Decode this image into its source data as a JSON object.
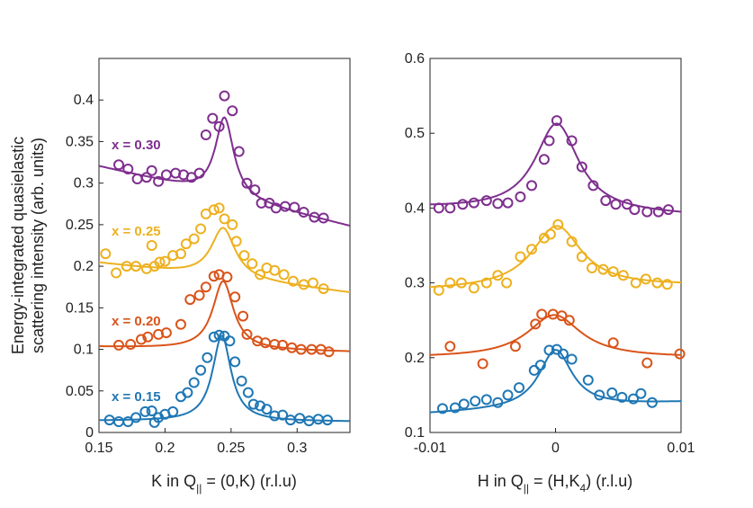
{
  "chart_data": [
    {
      "type": "scatter",
      "xlabel": "K in Q|| = (0,K) (r.l.u)",
      "xlabel_parts": {
        "prefix": "K in Q",
        "sub": "||",
        "suffix": " = (0,K) (r.l.u)"
      },
      "ylabel_line1": "Energy-integrated quasielastic",
      "ylabel_line2": "scattering intensity (arb. units)",
      "xlim": [
        0.15,
        0.34
      ],
      "ylim": [
        0,
        0.45
      ],
      "xticks": [
        0.15,
        0.2,
        0.25,
        0.3
      ],
      "xtick_labels": [
        "0.15",
        "0.2",
        "0.25",
        "0.3"
      ],
      "yticks": [
        0,
        0.05,
        0.1,
        0.15,
        0.2,
        0.25,
        0.3,
        0.35,
        0.4
      ],
      "ytick_labels": [
        "0",
        "0.05",
        "0.1",
        "0.15",
        "0.2",
        "0.25",
        "0.3",
        "0.35",
        "0.4"
      ],
      "series": [
        {
          "name": "x = 0.15",
          "color": "#1f77b4",
          "fit": {
            "center": 0.243,
            "hwhm": 0.0085,
            "amp": 0.103,
            "baseline_start": 0.014,
            "baseline_end": 0.013
          },
          "points": [
            [
              0.158,
              0.015
            ],
            [
              0.165,
              0.013
            ],
            [
              0.172,
              0.013
            ],
            [
              0.178,
              0.018
            ],
            [
              0.185,
              0.025
            ],
            [
              0.19,
              0.026
            ],
            [
              0.192,
              0.012
            ],
            [
              0.195,
              0.018
            ],
            [
              0.2,
              0.022
            ],
            [
              0.206,
              0.025
            ],
            [
              0.212,
              0.043
            ],
            [
              0.217,
              0.048
            ],
            [
              0.222,
              0.06
            ],
            [
              0.227,
              0.075
            ],
            [
              0.232,
              0.09
            ],
            [
              0.237,
              0.115
            ],
            [
              0.241,
              0.117
            ],
            [
              0.245,
              0.116
            ],
            [
              0.249,
              0.11
            ],
            [
              0.253,
              0.085
            ],
            [
              0.258,
              0.062
            ],
            [
              0.263,
              0.048
            ],
            [
              0.267,
              0.034
            ],
            [
              0.272,
              0.032
            ],
            [
              0.277,
              0.028
            ],
            [
              0.283,
              0.02
            ],
            [
              0.289,
              0.021
            ],
            [
              0.295,
              0.015
            ],
            [
              0.302,
              0.017
            ],
            [
              0.309,
              0.014
            ],
            [
              0.316,
              0.016
            ],
            [
              0.323,
              0.015
            ]
          ]
        },
        {
          "name": "x = 0.20",
          "color": "#d9541a",
          "fit": {
            "center": 0.244,
            "hwhm": 0.0095,
            "amp": 0.082,
            "baseline_start": 0.103,
            "baseline_end": 0.097
          },
          "points": [
            [
              0.165,
              0.105
            ],
            [
              0.174,
              0.106
            ],
            [
              0.182,
              0.112
            ],
            [
              0.187,
              0.115
            ],
            [
              0.195,
              0.118
            ],
            [
              0.201,
              0.12
            ],
            [
              0.212,
              0.13
            ],
            [
              0.219,
              0.16
            ],
            [
              0.226,
              0.165
            ],
            [
              0.231,
              0.175
            ],
            [
              0.237,
              0.188
            ],
            [
              0.241,
              0.19
            ],
            [
              0.247,
              0.187
            ],
            [
              0.253,
              0.163
            ],
            [
              0.259,
              0.14
            ],
            [
              0.262,
              0.118
            ],
            [
              0.27,
              0.11
            ],
            [
              0.276,
              0.108
            ],
            [
              0.283,
              0.106
            ],
            [
              0.289,
              0.105
            ],
            [
              0.296,
              0.102
            ],
            [
              0.303,
              0.1
            ],
            [
              0.311,
              0.1
            ],
            [
              0.318,
              0.1
            ],
            [
              0.324,
              0.097
            ]
          ]
        },
        {
          "name": "x = 0.25",
          "color": "#edb120",
          "fit": {
            "center": 0.244,
            "hwhm": 0.011,
            "amp": 0.06,
            "baseline_start": 0.204,
            "baseline_end": 0.168
          },
          "points": [
            [
              0.155,
              0.215
            ],
            [
              0.163,
              0.192
            ],
            [
              0.171,
              0.2
            ],
            [
              0.178,
              0.2
            ],
            [
              0.186,
              0.197
            ],
            [
              0.19,
              0.225
            ],
            [
              0.192,
              0.2
            ],
            [
              0.196,
              0.205
            ],
            [
              0.2,
              0.206
            ],
            [
              0.206,
              0.213
            ],
            [
              0.212,
              0.215
            ],
            [
              0.216,
              0.227
            ],
            [
              0.222,
              0.233
            ],
            [
              0.227,
              0.245
            ],
            [
              0.231,
              0.263
            ],
            [
              0.237,
              0.268
            ],
            [
              0.241,
              0.27
            ],
            [
              0.245,
              0.257
            ],
            [
              0.251,
              0.25
            ],
            [
              0.254,
              0.23
            ],
            [
              0.26,
              0.213
            ],
            [
              0.266,
              0.203
            ],
            [
              0.272,
              0.19
            ],
            [
              0.277,
              0.198
            ],
            [
              0.283,
              0.195
            ],
            [
              0.29,
              0.19
            ],
            [
              0.297,
              0.182
            ],
            [
              0.305,
              0.178
            ],
            [
              0.312,
              0.18
            ],
            [
              0.32,
              0.173
            ]
          ]
        },
        {
          "name": "x = 0.30",
          "color": "#7e2f8e",
          "fit": {
            "center": 0.245,
            "hwhm": 0.0085,
            "amp": 0.095,
            "baseline_start": 0.32,
            "baseline_end": 0.248
          },
          "points": [
            [
              0.165,
              0.322
            ],
            [
              0.172,
              0.317
            ],
            [
              0.179,
              0.305
            ],
            [
              0.186,
              0.307
            ],
            [
              0.19,
              0.315
            ],
            [
              0.195,
              0.302
            ],
            [
              0.201,
              0.31
            ],
            [
              0.208,
              0.312
            ],
            [
              0.214,
              0.31
            ],
            [
              0.22,
              0.307
            ],
            [
              0.226,
              0.312
            ],
            [
              0.231,
              0.358
            ],
            [
              0.236,
              0.378
            ],
            [
              0.241,
              0.368
            ],
            [
              0.245,
              0.405
            ],
            [
              0.251,
              0.387
            ],
            [
              0.256,
              0.338
            ],
            [
              0.262,
              0.3
            ],
            [
              0.268,
              0.292
            ],
            [
              0.273,
              0.276
            ],
            [
              0.279,
              0.276
            ],
            [
              0.284,
              0.27
            ],
            [
              0.291,
              0.272
            ],
            [
              0.298,
              0.271
            ],
            [
              0.305,
              0.265
            ],
            [
              0.313,
              0.259
            ],
            [
              0.32,
              0.258
            ]
          ]
        }
      ],
      "series_labels": [
        "x = 0.30",
        "x = 0.25",
        "x = 0.20",
        "x = 0.15"
      ]
    },
    {
      "type": "scatter",
      "xlabel": "H in Q|| = (H,K4) (r.l.u)",
      "xlabel_parts": {
        "prefix": "H in Q",
        "sub": "||",
        "suffix1": " = (H,K",
        "sub2": "4",
        "suffix2": ") (r.l.u)"
      },
      "xlim": [
        -0.01,
        0.01
      ],
      "ylim": [
        0.1,
        0.6
      ],
      "xticks": [
        -0.01,
        0,
        0.01
      ],
      "xtick_labels": [
        "-0.01",
        "0",
        "0.01"
      ],
      "yticks": [
        0.1,
        0.2,
        0.3,
        0.4,
        0.5,
        0.6
      ],
      "ytick_labels": [
        "0.1",
        "0.2",
        "0.3",
        "0.4",
        "0.5",
        "0.6"
      ],
      "series": [
        {
          "name": "x = 0.15",
          "color": "#1f77b4",
          "fit": {
            "center": 0.0,
            "hwhm": 0.0016,
            "amp": 0.078,
            "baseline_start": 0.125,
            "baseline_end": 0.14
          },
          "points": [
            [
              -0.009,
              0.132
            ],
            [
              -0.008,
              0.133
            ],
            [
              -0.0073,
              0.138
            ],
            [
              -0.0064,
              0.142
            ],
            [
              -0.0055,
              0.144
            ],
            [
              -0.0046,
              0.14
            ],
            [
              -0.0038,
              0.15
            ],
            [
              -0.0029,
              0.16
            ],
            [
              -0.0017,
              0.183
            ],
            [
              -0.0012,
              0.19
            ],
            [
              -0.0005,
              0.21
            ],
            [
              0.0001,
              0.211
            ],
            [
              0.0006,
              0.205
            ],
            [
              0.0013,
              0.198
            ],
            [
              0.0026,
              0.17
            ],
            [
              0.0035,
              0.15
            ],
            [
              0.0045,
              0.153
            ],
            [
              0.0053,
              0.147
            ],
            [
              0.0062,
              0.145
            ],
            [
              0.0068,
              0.152
            ],
            [
              0.0077,
              0.14
            ]
          ]
        },
        {
          "name": "x = 0.20",
          "color": "#d9541a",
          "fit": {
            "center": -0.0001,
            "hwhm": 0.0026,
            "amp": 0.057,
            "baseline_start": 0.2,
            "baseline_end": 0.2
          },
          "points": [
            [
              -0.0084,
              0.215
            ],
            [
              -0.0058,
              0.192
            ],
            [
              -0.0032,
              0.215
            ],
            [
              -0.0016,
              0.245
            ],
            [
              -0.0011,
              0.258
            ],
            [
              -0.0002,
              0.258
            ],
            [
              0.0005,
              0.256
            ],
            [
              0.0011,
              0.25
            ],
            [
              0.0046,
              0.22
            ],
            [
              0.0073,
              0.193
            ],
            [
              0.0099,
              0.205
            ]
          ]
        },
        {
          "name": "x = 0.25",
          "color": "#edb120",
          "fit": {
            "center": 0.0001,
            "hwhm": 0.0024,
            "amp": 0.083,
            "baseline_start": 0.29,
            "baseline_end": 0.296
          },
          "points": [
            [
              -0.0093,
              0.29
            ],
            [
              -0.0084,
              0.3
            ],
            [
              -0.0075,
              0.3
            ],
            [
              -0.0065,
              0.293
            ],
            [
              -0.0055,
              0.3
            ],
            [
              -0.0046,
              0.31
            ],
            [
              -0.0039,
              0.3
            ],
            [
              -0.0028,
              0.335
            ],
            [
              -0.0019,
              0.345
            ],
            [
              -0.0009,
              0.36
            ],
            [
              -0.0004,
              0.365
            ],
            [
              0.0002,
              0.378
            ],
            [
              0.0013,
              0.355
            ],
            [
              0.0021,
              0.335
            ],
            [
              0.0029,
              0.32
            ],
            [
              0.0038,
              0.318
            ],
            [
              0.0046,
              0.315
            ],
            [
              0.0054,
              0.31
            ],
            [
              0.0064,
              0.3
            ],
            [
              0.0072,
              0.305
            ],
            [
              0.0081,
              0.3
            ],
            [
              0.0089,
              0.298
            ]
          ]
        },
        {
          "name": "x = 0.30",
          "color": "#7e2f8e",
          "fit": {
            "center": 0.0001,
            "hwhm": 0.0021,
            "amp": 0.118,
            "baseline_start": 0.4,
            "baseline_end": 0.39
          },
          "points": [
            [
              -0.0093,
              0.4
            ],
            [
              -0.0084,
              0.4
            ],
            [
              -0.0074,
              0.405
            ],
            [
              -0.0065,
              0.407
            ],
            [
              -0.0055,
              0.41
            ],
            [
              -0.0046,
              0.406
            ],
            [
              -0.0038,
              0.407
            ],
            [
              -0.0028,
              0.415
            ],
            [
              -0.0019,
              0.43
            ],
            [
              -0.0009,
              0.465
            ],
            [
              -0.0005,
              0.49
            ],
            [
              0.0001,
              0.517
            ],
            [
              0.0013,
              0.49
            ],
            [
              0.0021,
              0.455
            ],
            [
              0.003,
              0.43
            ],
            [
              0.004,
              0.41
            ],
            [
              0.0048,
              0.405
            ],
            [
              0.0057,
              0.405
            ],
            [
              0.0063,
              0.398
            ],
            [
              0.0073,
              0.395
            ],
            [
              0.0082,
              0.395
            ],
            [
              0.009,
              0.398
            ]
          ]
        }
      ]
    }
  ]
}
